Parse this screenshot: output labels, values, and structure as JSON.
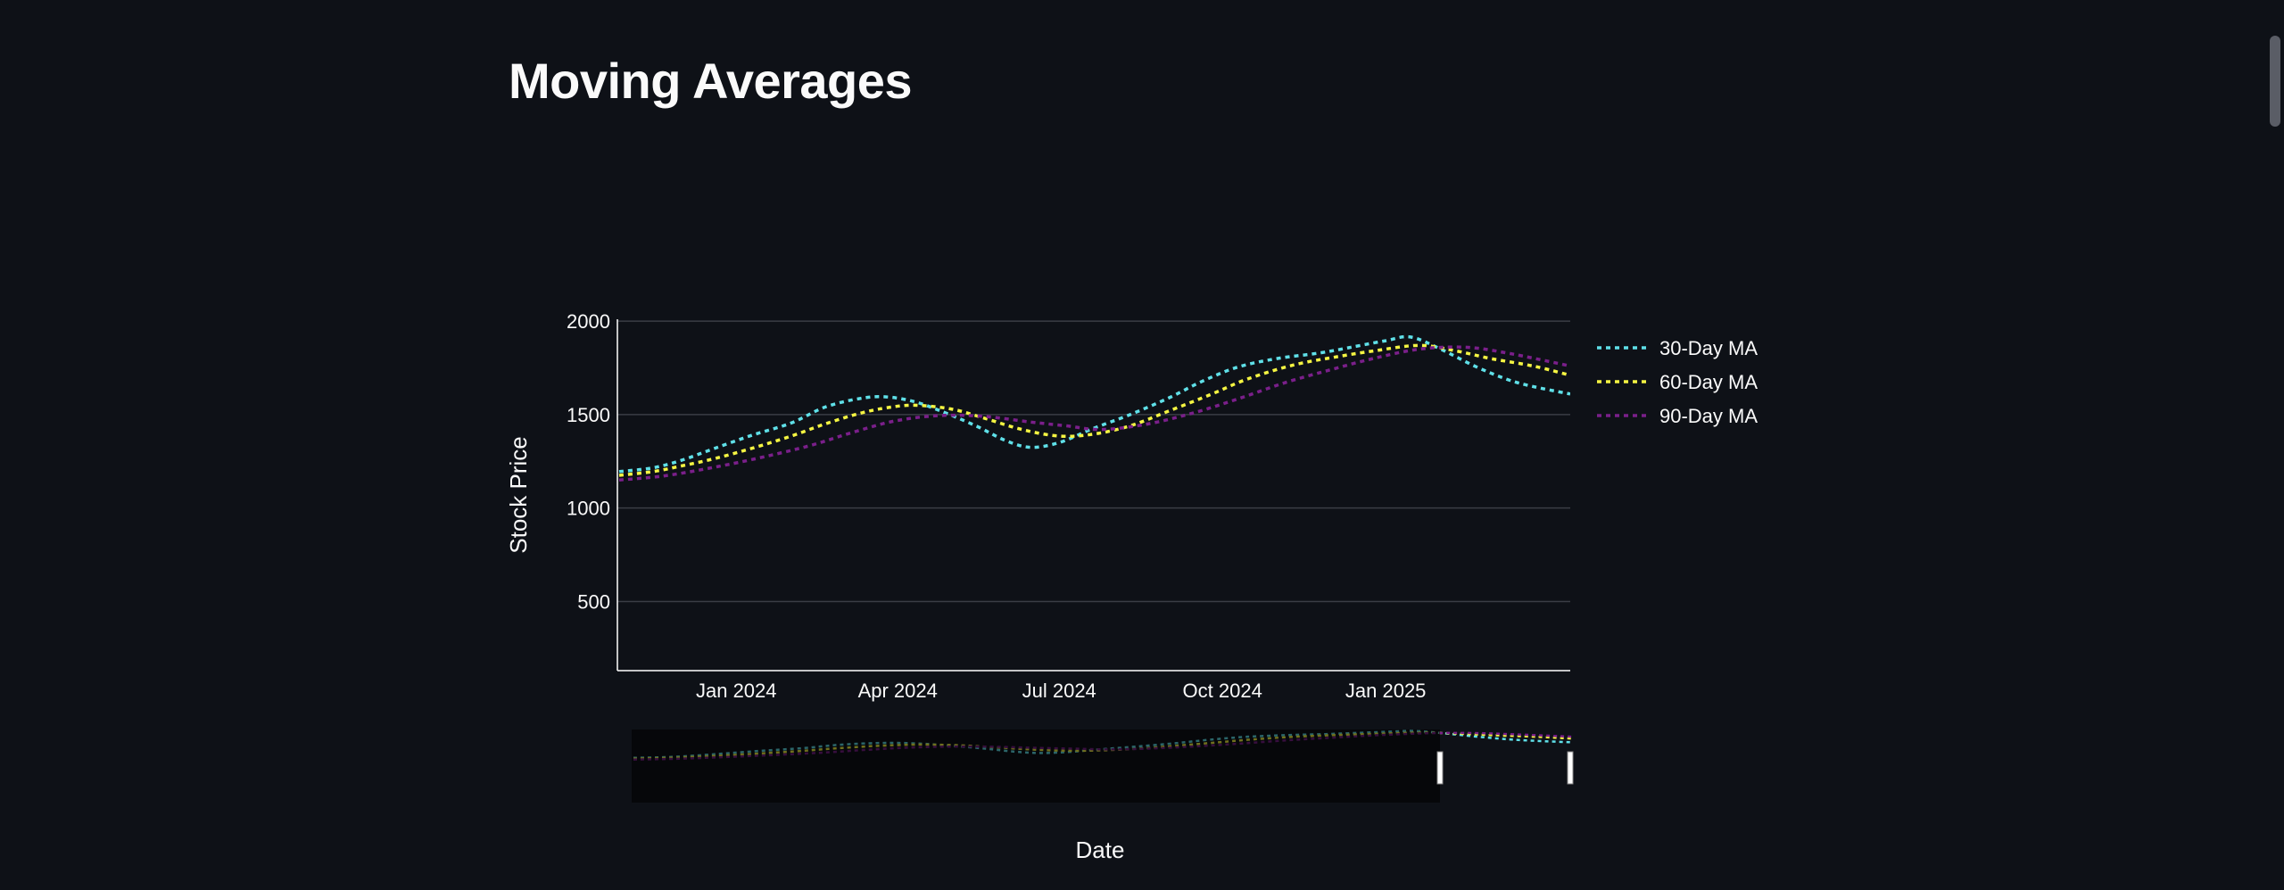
{
  "page": {
    "title": "Moving Averages"
  },
  "chart_data": {
    "type": "line",
    "title": "",
    "xlabel": "Date",
    "ylabel": "Stock Price",
    "ylim": [
      130,
      2010
    ],
    "xlim": [
      "2023-10-26",
      "2025-04-15"
    ],
    "y_ticks": [
      500,
      1000,
      1500,
      2000
    ],
    "x_ticks": [
      {
        "date": "2024-01-01",
        "label": "Jan 2024"
      },
      {
        "date": "2024-04-01",
        "label": "Apr 2024"
      },
      {
        "date": "2024-07-01",
        "label": "Jul 2024"
      },
      {
        "date": "2024-10-01",
        "label": "Oct 2024"
      },
      {
        "date": "2025-01-01",
        "label": "Jan 2025"
      }
    ],
    "grid": true,
    "legend_position": "right",
    "range_slider": true,
    "series": [
      {
        "name": "30-Day MA",
        "color": "#5fe0e8",
        "dash": "dot",
        "points": [
          [
            "2023-10-27",
            1195
          ],
          [
            "2023-11-15",
            1215
          ],
          [
            "2023-12-01",
            1255
          ],
          [
            "2023-12-20",
            1320
          ],
          [
            "2024-01-10",
            1390
          ],
          [
            "2024-02-01",
            1455
          ],
          [
            "2024-02-20",
            1540
          ],
          [
            "2024-03-10",
            1585
          ],
          [
            "2024-03-25",
            1595
          ],
          [
            "2024-04-10",
            1570
          ],
          [
            "2024-04-25",
            1520
          ],
          [
            "2024-05-15",
            1440
          ],
          [
            "2024-06-01",
            1360
          ],
          [
            "2024-06-15",
            1325
          ],
          [
            "2024-07-01",
            1350
          ],
          [
            "2024-07-20",
            1425
          ],
          [
            "2024-08-10",
            1500
          ],
          [
            "2024-09-01",
            1590
          ],
          [
            "2024-09-20",
            1680
          ],
          [
            "2024-10-10",
            1755
          ],
          [
            "2024-11-01",
            1800
          ],
          [
            "2024-11-25",
            1830
          ],
          [
            "2024-12-15",
            1865
          ],
          [
            "2025-01-01",
            1895
          ],
          [
            "2025-01-15",
            1915
          ],
          [
            "2025-02-01",
            1850
          ],
          [
            "2025-02-20",
            1760
          ],
          [
            "2025-03-10",
            1690
          ],
          [
            "2025-03-25",
            1650
          ],
          [
            "2025-04-15",
            1610
          ]
        ]
      },
      {
        "name": "60-Day MA",
        "color": "#f5f542",
        "dash": "dot",
        "points": [
          [
            "2023-10-27",
            1175
          ],
          [
            "2023-11-15",
            1195
          ],
          [
            "2023-12-01",
            1225
          ],
          [
            "2023-12-20",
            1265
          ],
          [
            "2024-01-10",
            1320
          ],
          [
            "2024-02-01",
            1385
          ],
          [
            "2024-02-20",
            1450
          ],
          [
            "2024-03-10",
            1505
          ],
          [
            "2024-03-25",
            1535
          ],
          [
            "2024-04-10",
            1550
          ],
          [
            "2024-05-01",
            1530
          ],
          [
            "2024-05-20",
            1480
          ],
          [
            "2024-06-10",
            1420
          ],
          [
            "2024-07-01",
            1385
          ],
          [
            "2024-07-20",
            1395
          ],
          [
            "2024-08-10",
            1440
          ],
          [
            "2024-09-01",
            1520
          ],
          [
            "2024-09-25",
            1610
          ],
          [
            "2024-10-15",
            1690
          ],
          [
            "2024-11-10",
            1765
          ],
          [
            "2024-12-05",
            1810
          ],
          [
            "2024-12-25",
            1840
          ],
          [
            "2025-01-20",
            1870
          ],
          [
            "2025-02-10",
            1840
          ],
          [
            "2025-03-01",
            1800
          ],
          [
            "2025-03-25",
            1760
          ],
          [
            "2025-04-15",
            1710
          ]
        ]
      },
      {
        "name": "90-Day MA",
        "color": "#7a1f8a",
        "dash": "dot",
        "points": [
          [
            "2023-10-27",
            1150
          ],
          [
            "2023-11-20",
            1170
          ],
          [
            "2023-12-15",
            1210
          ],
          [
            "2024-01-10",
            1260
          ],
          [
            "2024-02-10",
            1330
          ],
          [
            "2024-03-05",
            1400
          ],
          [
            "2024-03-30",
            1465
          ],
          [
            "2024-04-25",
            1495
          ],
          [
            "2024-05-20",
            1490
          ],
          [
            "2024-06-15",
            1460
          ],
          [
            "2024-07-05",
            1440
          ],
          [
            "2024-07-25",
            1420
          ],
          [
            "2024-08-20",
            1450
          ],
          [
            "2024-09-15",
            1510
          ],
          [
            "2024-10-10",
            1585
          ],
          [
            "2024-11-05",
            1670
          ],
          [
            "2024-12-01",
            1740
          ],
          [
            "2024-12-25",
            1800
          ],
          [
            "2025-01-20",
            1850
          ],
          [
            "2025-02-15",
            1860
          ],
          [
            "2025-03-10",
            1830
          ],
          [
            "2025-04-15",
            1760
          ]
        ]
      }
    ]
  }
}
